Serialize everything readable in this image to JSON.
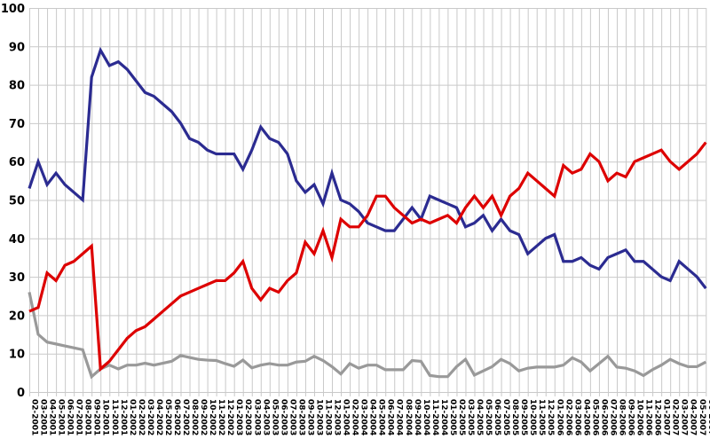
{
  "chart_data": {
    "type": "line",
    "title": "",
    "xlabel": "",
    "ylabel": "",
    "ylim": [
      0,
      100
    ],
    "ytick_step": 10,
    "ytick_labels": [
      "0",
      "10",
      "20",
      "30",
      "40",
      "50",
      "60",
      "70",
      "80",
      "90",
      "100"
    ],
    "grid": true,
    "legend_position": "none",
    "background_color": "#ffffff",
    "gridline_color": "#c9c9c9",
    "axis_label_color": "#000000",
    "x": [
      "02-2001",
      "03-2001",
      "04-2001",
      "05-2001",
      "06-2001",
      "07-2001",
      "08-2001",
      "09-2001",
      "10-2001",
      "11-2001",
      "12-2001",
      "01-2002",
      "02-2002",
      "03-2002",
      "04-2002",
      "05-2002",
      "06-2002",
      "07-2002",
      "08-2002",
      "09-2002",
      "10-2002",
      "11-2002",
      "12-2002",
      "01-2003",
      "02-2003",
      "03-2003",
      "04-2003",
      "05-2003",
      "06-2003",
      "07-2003",
      "08-2003",
      "09-2003",
      "10-2003",
      "11-2003",
      "12-2003",
      "01-2004",
      "02-2004",
      "03-2004",
      "04-2004",
      "05-2004",
      "06-2004",
      "07-2004",
      "08-2004",
      "09-2004",
      "10-2004",
      "11-2004",
      "12-2004",
      "01-2005",
      "02-2005",
      "03-2005",
      "04-2005",
      "05-2005",
      "06-2005",
      "07-2005",
      "08-2005",
      "09-2005",
      "10-2005",
      "11-2005",
      "12-2005",
      "01-2006",
      "02-2006",
      "03-2006",
      "04-2006",
      "05-2006",
      "06-2006",
      "07-2006",
      "08-2006",
      "09-2006",
      "10-2006",
      "11-2006",
      "12-2006",
      "01-2007",
      "02-2007",
      "03-2007",
      "04-2007",
      "05-2007",
      "06-2007"
    ],
    "series": [
      {
        "name": "blue-line",
        "color": "#2b2b91",
        "values": [
          53,
          60,
          54,
          57,
          54,
          52,
          50,
          82,
          89,
          85,
          86,
          84,
          81,
          78,
          77,
          75,
          73,
          70,
          66,
          65,
          63,
          62,
          62,
          62,
          58,
          63,
          69,
          66,
          65,
          62,
          55,
          52,
          54,
          49,
          57,
          50,
          49,
          47,
          44,
          43,
          42,
          42,
          45,
          48,
          45,
          51,
          50,
          49,
          48,
          43,
          44,
          46,
          42,
          45,
          42,
          41,
          36,
          38,
          40,
          41,
          34,
          34,
          35,
          33,
          32,
          35,
          36,
          37,
          34,
          34,
          32,
          30,
          29,
          34,
          32,
          30,
          27
        ]
      },
      {
        "name": "red-line",
        "color": "#dd0000",
        "values": [
          21,
          22,
          31,
          29,
          33,
          34,
          36,
          38,
          6,
          8,
          11,
          14,
          16,
          17,
          19,
          21,
          23,
          25,
          26,
          27,
          28,
          29,
          29,
          31,
          34,
          27,
          24,
          27,
          26,
          29,
          31,
          39,
          36,
          42,
          35,
          45,
          43,
          43,
          46,
          51,
          51,
          48,
          46,
          44,
          45,
          44,
          45,
          46,
          44,
          48,
          51,
          48,
          51,
          46,
          51,
          53,
          57,
          55,
          53,
          51,
          59,
          57,
          58,
          62,
          60,
          55,
          57,
          56,
          60,
          61,
          62,
          63,
          60,
          58,
          60,
          62,
          65
        ]
      },
      {
        "name": "gray-line",
        "color": "#999999",
        "values": [
          26,
          15,
          13,
          12.5,
          12,
          11.5,
          11,
          4,
          6,
          7,
          6,
          7,
          7,
          7.5,
          7,
          7.5,
          8,
          9.5,
          9,
          8.5,
          8.3,
          8.2,
          7.4,
          6.7,
          8.3,
          6.3,
          7,
          7.4,
          7,
          7,
          7.8,
          8,
          9.3,
          8.2,
          6.6,
          4.7,
          7.4,
          6.2,
          7,
          7,
          5.8,
          5.8,
          5.8,
          8.2,
          8,
          4.3,
          4,
          4,
          6.6,
          8.5,
          4.4,
          5.5,
          6.6,
          8.5,
          7.4,
          5.5,
          6.2,
          6.5,
          6.5,
          6.5,
          7,
          8.9,
          7.8,
          5.5,
          7.4,
          9.3,
          6.5,
          6.2,
          5.5,
          4.3,
          5.8,
          7,
          8.5,
          7.4,
          6.6,
          6.6,
          7.8
        ]
      }
    ]
  }
}
